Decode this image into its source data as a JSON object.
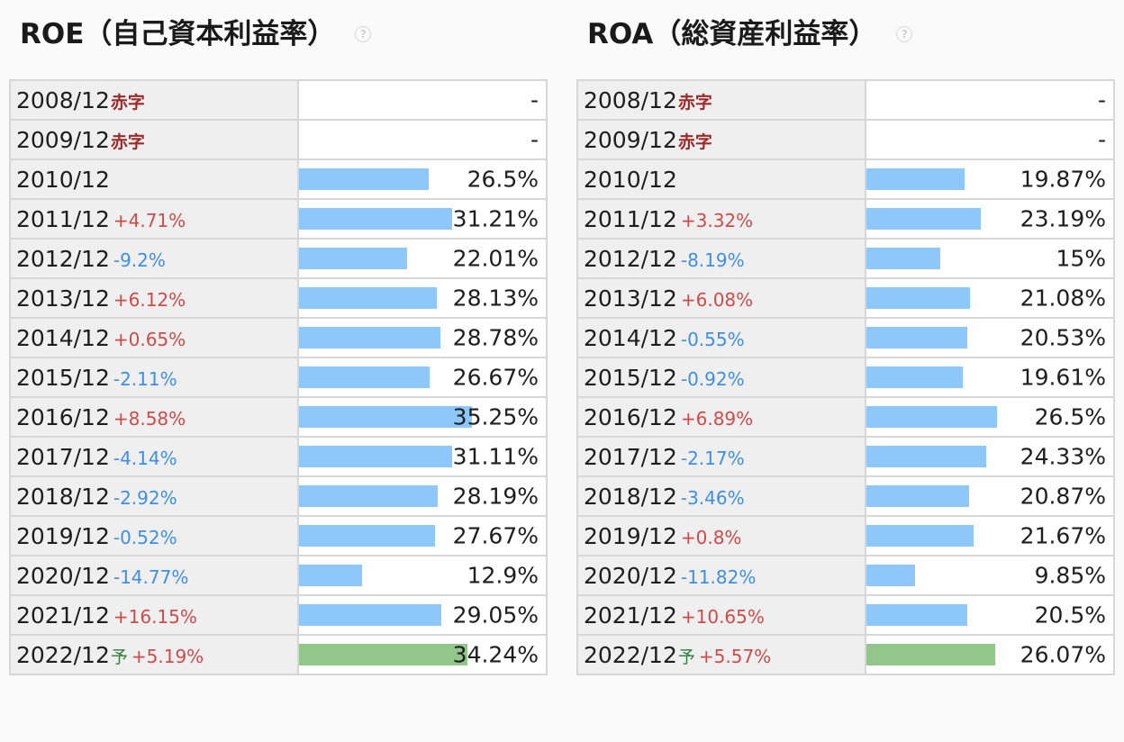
{
  "roe": {
    "title": "ROE（自己資本利益率）",
    "help_icon": "question-circle-icon",
    "rows": [
      {
        "period": "2008/12",
        "note": "赤字",
        "change": "",
        "dir": "",
        "value": "-",
        "bar": 0,
        "forecast": false
      },
      {
        "period": "2009/12",
        "note": "赤字",
        "change": "",
        "dir": "",
        "value": "-",
        "bar": 0,
        "forecast": false
      },
      {
        "period": "2010/12",
        "note": "",
        "change": "",
        "dir": "",
        "value": "26.5%",
        "bar": 26.5,
        "forecast": false
      },
      {
        "period": "2011/12",
        "note": "",
        "change": "+4.71%",
        "dir": "up",
        "value": "31.21%",
        "bar": 31.21,
        "forecast": false
      },
      {
        "period": "2012/12",
        "note": "",
        "change": "-9.2%",
        "dir": "down",
        "value": "22.01%",
        "bar": 22.01,
        "forecast": false
      },
      {
        "period": "2013/12",
        "note": "",
        "change": "+6.12%",
        "dir": "up",
        "value": "28.13%",
        "bar": 28.13,
        "forecast": false
      },
      {
        "period": "2014/12",
        "note": "",
        "change": "+0.65%",
        "dir": "up",
        "value": "28.78%",
        "bar": 28.78,
        "forecast": false
      },
      {
        "period": "2015/12",
        "note": "",
        "change": "-2.11%",
        "dir": "down",
        "value": "26.67%",
        "bar": 26.67,
        "forecast": false
      },
      {
        "period": "2016/12",
        "note": "",
        "change": "+8.58%",
        "dir": "up",
        "value": "35.25%",
        "bar": 35.25,
        "forecast": false
      },
      {
        "period": "2017/12",
        "note": "",
        "change": "-4.14%",
        "dir": "down",
        "value": "31.11%",
        "bar": 31.11,
        "forecast": false
      },
      {
        "period": "2018/12",
        "note": "",
        "change": "-2.92%",
        "dir": "down",
        "value": "28.19%",
        "bar": 28.19,
        "forecast": false
      },
      {
        "period": "2019/12",
        "note": "",
        "change": "-0.52%",
        "dir": "down",
        "value": "27.67%",
        "bar": 27.67,
        "forecast": false
      },
      {
        "period": "2020/12",
        "note": "",
        "change": "-14.77%",
        "dir": "down",
        "value": "12.9%",
        "bar": 12.9,
        "forecast": false
      },
      {
        "period": "2021/12",
        "note": "",
        "change": "+16.15%",
        "dir": "up",
        "value": "29.05%",
        "bar": 29.05,
        "forecast": false
      },
      {
        "period": "2022/12",
        "note": "予",
        "change": "+5.19%",
        "dir": "up",
        "value": "34.24%",
        "bar": 34.24,
        "forecast": true
      }
    ]
  },
  "roa": {
    "title": "ROA（総資産利益率）",
    "help_icon": "question-circle-icon",
    "rows": [
      {
        "period": "2008/12",
        "note": "赤字",
        "change": "",
        "dir": "",
        "value": "-",
        "bar": 0,
        "forecast": false
      },
      {
        "period": "2009/12",
        "note": "赤字",
        "change": "",
        "dir": "",
        "value": "-",
        "bar": 0,
        "forecast": false
      },
      {
        "period": "2010/12",
        "note": "",
        "change": "",
        "dir": "",
        "value": "19.87%",
        "bar": 19.87,
        "forecast": false
      },
      {
        "period": "2011/12",
        "note": "",
        "change": "+3.32%",
        "dir": "up",
        "value": "23.19%",
        "bar": 23.19,
        "forecast": false
      },
      {
        "period": "2012/12",
        "note": "",
        "change": "-8.19%",
        "dir": "down",
        "value": "15%",
        "bar": 15,
        "forecast": false
      },
      {
        "period": "2013/12",
        "note": "",
        "change": "+6.08%",
        "dir": "up",
        "value": "21.08%",
        "bar": 21.08,
        "forecast": false
      },
      {
        "period": "2014/12",
        "note": "",
        "change": "-0.55%",
        "dir": "down",
        "value": "20.53%",
        "bar": 20.53,
        "forecast": false
      },
      {
        "period": "2015/12",
        "note": "",
        "change": "-0.92%",
        "dir": "down",
        "value": "19.61%",
        "bar": 19.61,
        "forecast": false
      },
      {
        "period": "2016/12",
        "note": "",
        "change": "+6.89%",
        "dir": "up",
        "value": "26.5%",
        "bar": 26.5,
        "forecast": false
      },
      {
        "period": "2017/12",
        "note": "",
        "change": "-2.17%",
        "dir": "down",
        "value": "24.33%",
        "bar": 24.33,
        "forecast": false
      },
      {
        "period": "2018/12",
        "note": "",
        "change": "-3.46%",
        "dir": "down",
        "value": "20.87%",
        "bar": 20.87,
        "forecast": false
      },
      {
        "period": "2019/12",
        "note": "",
        "change": "+0.8%",
        "dir": "up",
        "value": "21.67%",
        "bar": 21.67,
        "forecast": false
      },
      {
        "period": "2020/12",
        "note": "",
        "change": "-11.82%",
        "dir": "down",
        "value": "9.85%",
        "bar": 9.85,
        "forecast": false
      },
      {
        "period": "2021/12",
        "note": "",
        "change": "+10.65%",
        "dir": "up",
        "value": "20.5%",
        "bar": 20.5,
        "forecast": false
      },
      {
        "period": "2022/12",
        "note": "予",
        "change": "+5.57%",
        "dir": "up",
        "value": "26.07%",
        "bar": 26.07,
        "forecast": true
      }
    ]
  },
  "colors": {
    "bar": "#8ec8fa",
    "forecast_bar": "#93c68b",
    "change_up": "#cf4b4b",
    "change_down": "#3f8ee8",
    "deficit_note": "#9b2b2b",
    "forecast_note": "#2f7d3a"
  }
}
